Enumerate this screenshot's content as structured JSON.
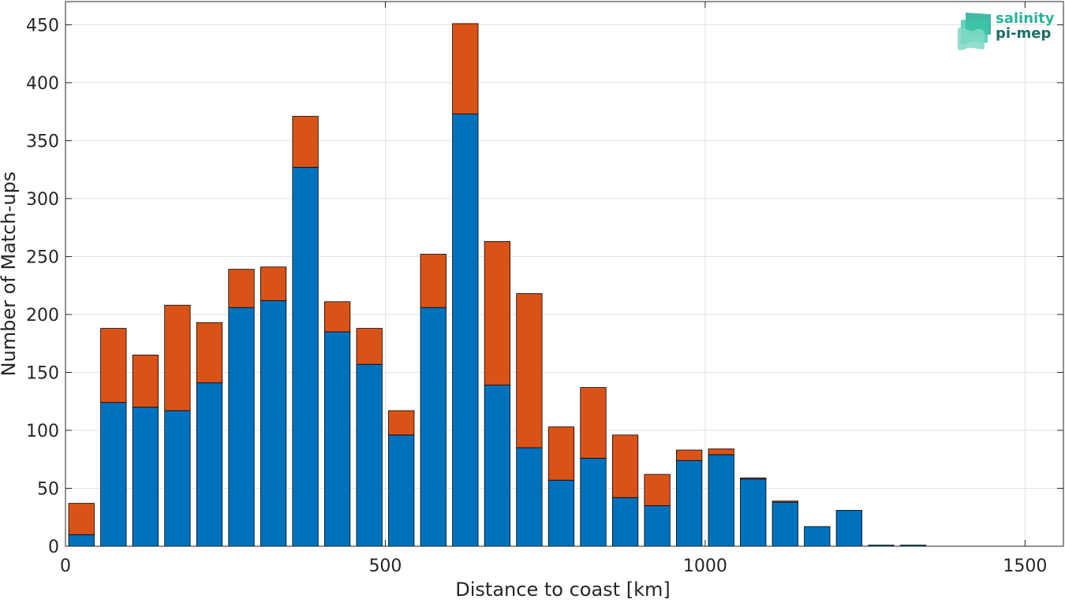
{
  "logo": {
    "line1": "salinity",
    "line2": "pi-mep"
  },
  "chart_data": {
    "type": "bar",
    "stacked": true,
    "title": "",
    "xlabel": "Distance to coast [km]",
    "ylabel": "Number of Match-ups",
    "xlim": [
      0,
      1560
    ],
    "ylim": [
      0,
      470
    ],
    "xticks": [
      0,
      500,
      1000,
      1500
    ],
    "yticks": [
      0,
      50,
      100,
      150,
      200,
      250,
      300,
      350,
      400,
      450
    ],
    "grid": true,
    "bar_width_km": 40,
    "x": [
      25,
      75,
      125,
      175,
      225,
      275,
      325,
      375,
      425,
      475,
      525,
      575,
      625,
      675,
      725,
      775,
      825,
      875,
      925,
      975,
      1025,
      1075,
      1125,
      1175,
      1225,
      1275,
      1325,
      1375,
      1425,
      1475
    ],
    "series": [
      {
        "color": "#0072bd",
        "values": [
          10,
          124,
          120,
          117,
          141,
          206,
          212,
          327,
          185,
          157,
          96,
          206,
          373,
          139,
          85,
          57,
          76,
          42,
          35,
          74,
          79,
          58,
          38,
          17,
          31,
          1,
          1,
          0,
          0,
          0
        ]
      },
      {
        "color": "#d95319",
        "values": [
          27,
          64,
          45,
          91,
          52,
          33,
          29,
          44,
          26,
          31,
          21,
          46,
          78,
          124,
          133,
          46,
          61,
          54,
          27,
          9,
          5,
          1,
          1,
          0,
          0,
          0,
          0,
          0,
          0,
          0
        ]
      }
    ]
  }
}
